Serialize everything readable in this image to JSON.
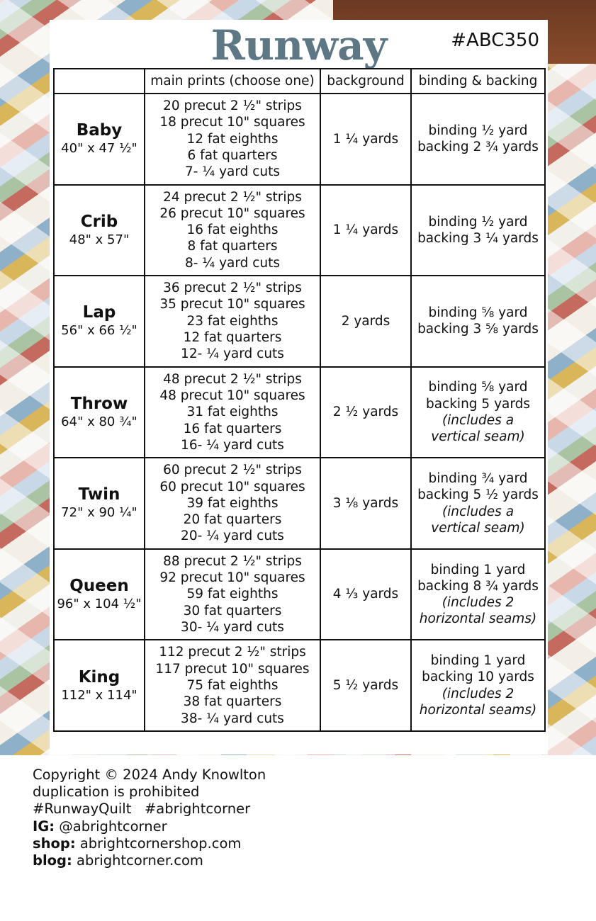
{
  "title": "Runway",
  "pattern_code": "#ABC350",
  "headers": [
    "",
    "main prints (choose one)",
    "background",
    "binding & backing"
  ],
  "rows": [
    {
      "size": "Baby",
      "dims": "40\" x 47 ½\"",
      "prints": [
        "20 precut 2 ½\" strips",
        "18 precut 10\" squares",
        "12 fat eighths",
        "6 fat quarters",
        "7- ¼ yard cuts"
      ],
      "background": "1 ¼ yards",
      "binding": [
        "binding ½ yard",
        "backing 2 ¾ yards"
      ],
      "notes": []
    },
    {
      "size": "Crib",
      "dims": "48\" x 57\"",
      "prints": [
        "24 precut 2 ½\" strips",
        "26 precut 10\" squares",
        "16 fat eighths",
        "8 fat quarters",
        "8- ¼ yard cuts"
      ],
      "background": "1 ¼ yards",
      "binding": [
        "binding ½ yard",
        "backing 3 ¼ yards"
      ],
      "notes": []
    },
    {
      "size": "Lap",
      "dims": "56\" x 66 ½\"",
      "prints": [
        "36 precut 2 ½\" strips",
        "35 precut 10\" squares",
        "23 fat eighths",
        "12 fat quarters",
        "12- ¼ yard cuts"
      ],
      "background": "2 yards",
      "binding": [
        "binding ⅝ yard",
        "backing 3 ⅝ yards"
      ],
      "notes": []
    },
    {
      "size": "Throw",
      "dims": "64\" x 80 ¾\"",
      "prints": [
        "48 precut 2 ½\" strips",
        "48 precut 10\" squares",
        "31 fat eighths",
        "16 fat quarters",
        "16- ¼ yard cuts"
      ],
      "background": "2 ½ yards",
      "binding": [
        "binding ⅝ yard",
        "backing 5 yards"
      ],
      "notes": [
        "(includes a",
        "vertical seam)"
      ]
    },
    {
      "size": "Twin",
      "dims": "72\" x 90 ¼\"",
      "prints": [
        "60 precut 2 ½\" strips",
        "60 precut 10\" squares",
        "39 fat eighths",
        "20 fat quarters",
        "20- ¼ yard cuts"
      ],
      "background": "3 ⅛ yards",
      "binding": [
        "binding ¾ yard",
        "backing 5 ½ yards"
      ],
      "notes": [
        "(includes a",
        "vertical seam)"
      ]
    },
    {
      "size": "Queen",
      "dims": "96\" x 104 ½\"",
      "prints": [
        "88 precut 2 ½\" strips",
        "92 precut 10\" squares",
        "59 fat eighths",
        "30 fat quarters",
        "30- ¼ yard cuts"
      ],
      "background": "4 ⅓ yards",
      "binding": [
        "binding 1 yard",
        "backing 8 ¾ yards"
      ],
      "notes": [
        "(includes 2",
        "horizontal seams)"
      ]
    },
    {
      "size": "King",
      "dims": "112\" x 114\"",
      "prints": [
        "112 precut 2 ½\" strips",
        "117 precut 10\" squares",
        "75 fat eighths",
        "38 fat quarters",
        "38- ¼ yard cuts"
      ],
      "background": "5 ½ yards",
      "binding": [
        "binding 1 yard",
        "backing 10 yards"
      ],
      "notes": [
        "(includes 2",
        "horizontal seams)"
      ]
    }
  ],
  "footer": {
    "copyright": "Copyright © 2024 Andy Knowlton",
    "duplication": "duplication is prohibited",
    "hashtags": "#RunwayQuilt   #abrightcorner",
    "ig_label": "IG:",
    "ig": " @abrightcorner",
    "shop_label": "shop:",
    "shop": " abrightcornershop.com",
    "blog_label": "blog:",
    "blog": " abrightcorner.com"
  },
  "colors": {
    "title": "#5e7784"
  }
}
